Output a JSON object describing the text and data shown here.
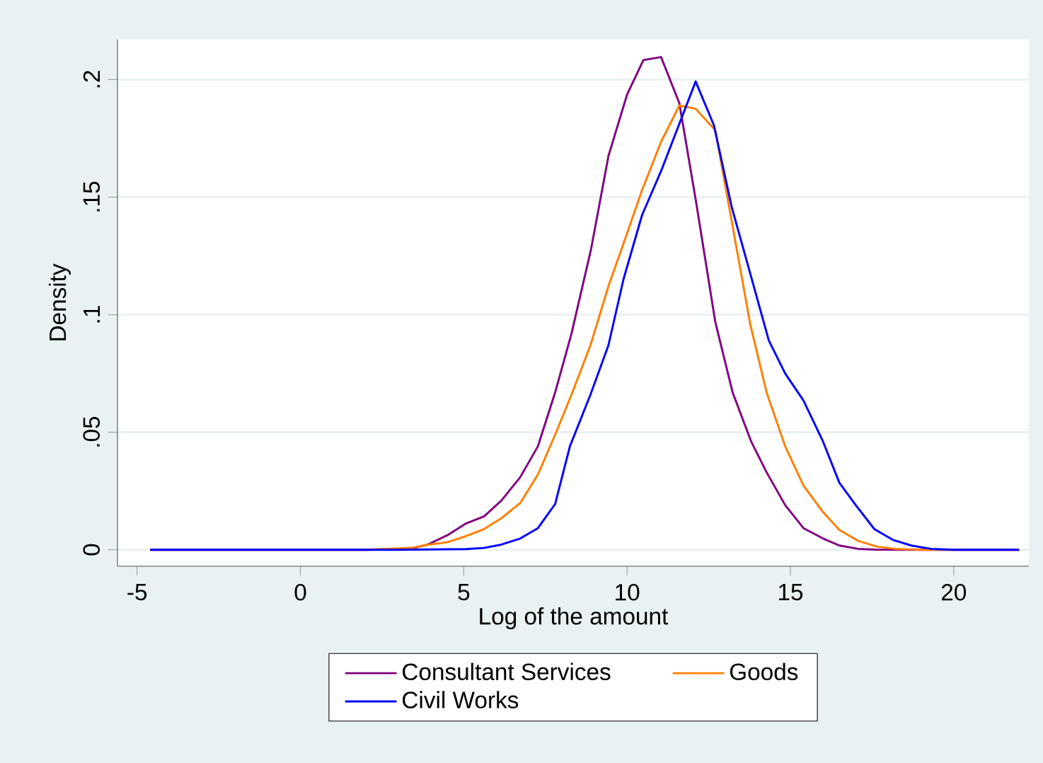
{
  "chart_data": {
    "type": "line",
    "xlabel": "Log of the amount",
    "ylabel": "Density",
    "xlim": [
      -5.6,
      22.3
    ],
    "ylim": [
      -0.007,
      0.217
    ],
    "xticks": [
      -5,
      0,
      5,
      10,
      15,
      20
    ],
    "yticks": [
      {
        "value": 0,
        "label": "0"
      },
      {
        "value": 0.05,
        "label": ".05"
      },
      {
        "value": 0.1,
        "label": ".1"
      },
      {
        "value": 0.15,
        "label": ".15"
      },
      {
        "value": 0.2,
        "label": ".2"
      }
    ],
    "grid": "y",
    "legend": "bottom",
    "series": [
      {
        "name": "Consultant Services",
        "color": "#800080",
        "x": [
          -4.6,
          -2,
          0,
          2,
          3.4,
          3.9,
          4.5,
          5.07,
          5.62,
          6.15,
          6.73,
          7.27,
          7.8,
          8.3,
          8.9,
          9.43,
          10.0,
          10.5,
          11.04,
          11.6,
          12.1,
          12.7,
          13.23,
          13.8,
          14.27,
          14.84,
          15.4,
          16.0,
          16.5,
          17.07,
          17.6,
          18.4,
          22.0
        ],
        "values": [
          0,
          0,
          0,
          0,
          0.0005,
          0.0022,
          0.0062,
          0.0112,
          0.0142,
          0.0209,
          0.0309,
          0.044,
          0.067,
          0.092,
          0.128,
          0.1675,
          0.1936,
          0.2083,
          0.2096,
          0.19,
          0.149,
          0.097,
          0.067,
          0.046,
          0.033,
          0.019,
          0.0092,
          0.0048,
          0.0018,
          0.0004,
          0.0001,
          0,
          0
        ]
      },
      {
        "name": "Goods",
        "color": "#ff7f00",
        "x": [
          -4.6,
          0,
          2,
          3.4,
          3.91,
          4.5,
          5.07,
          5.62,
          6.15,
          6.73,
          7.27,
          7.8,
          8.3,
          8.88,
          9.45,
          9.96,
          10.46,
          11.04,
          11.6,
          12.1,
          12.7,
          13.2,
          13.77,
          14.27,
          14.84,
          15.4,
          16.0,
          16.5,
          17.07,
          17.64,
          18.2,
          19,
          22
        ],
        "values": [
          0,
          0,
          0,
          0.0008,
          0.0022,
          0.0032,
          0.0058,
          0.0088,
          0.0134,
          0.0199,
          0.032,
          0.049,
          0.066,
          0.087,
          0.113,
          0.133,
          0.153,
          0.1735,
          0.189,
          0.1876,
          0.1785,
          0.14,
          0.096,
          0.067,
          0.044,
          0.0273,
          0.016,
          0.0084,
          0.0038,
          0.0014,
          0.0004,
          0,
          0
        ]
      },
      {
        "name": "Civil Works",
        "color": "#0000ff",
        "x": [
          -4.6,
          0,
          3,
          5.07,
          5.62,
          6.15,
          6.73,
          7.27,
          7.8,
          8.25,
          8.88,
          9.43,
          9.89,
          10.46,
          11.05,
          12.1,
          12.66,
          13.2,
          13.8,
          14.34,
          14.84,
          15.4,
          16.0,
          16.5,
          17.0,
          17.57,
          18.14,
          18.7,
          19.3,
          20,
          22
        ],
        "values": [
          0,
          0,
          0,
          0.0003,
          0.0008,
          0.0022,
          0.0048,
          0.0092,
          0.0195,
          0.044,
          0.066,
          0.087,
          0.115,
          0.1424,
          0.1614,
          0.1992,
          0.1805,
          0.146,
          0.116,
          0.089,
          0.075,
          0.0635,
          0.046,
          0.0285,
          0.019,
          0.0088,
          0.0042,
          0.0018,
          0.0004,
          0,
          0
        ]
      }
    ]
  }
}
